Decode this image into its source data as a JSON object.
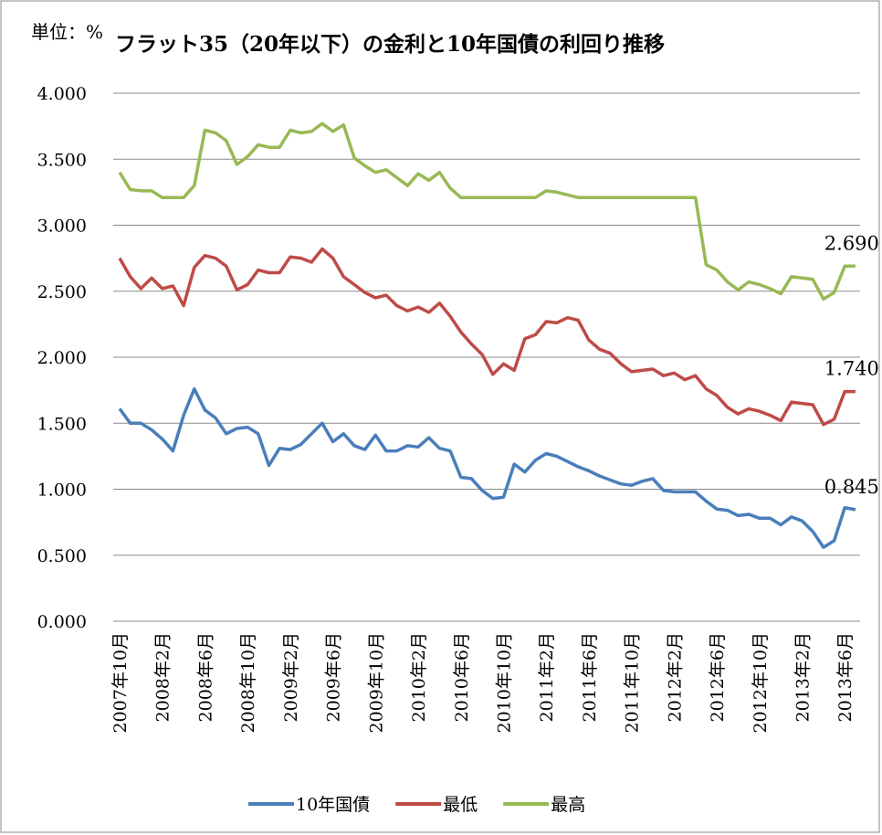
{
  "chart_data": {
    "type": "line",
    "unit_label": "単位：%",
    "title": "フラット35（20年以下）の金利と10年国債の利回り推移",
    "categories": [
      "2007年10月",
      null,
      null,
      null,
      "2008年2月",
      null,
      null,
      null,
      "2008年6月",
      null,
      null,
      null,
      "2008年10月",
      null,
      null,
      null,
      "2009年2月",
      null,
      null,
      null,
      "2009年6月",
      null,
      null,
      null,
      "2009年10月",
      null,
      null,
      null,
      "2010年2月",
      null,
      null,
      null,
      "2010年6月",
      null,
      null,
      null,
      "2010年10月",
      null,
      null,
      null,
      "2011年2月",
      null,
      null,
      null,
      "2011年6月",
      null,
      null,
      null,
      "2011年10月",
      null,
      null,
      null,
      "2012年2月",
      null,
      null,
      null,
      "2012年6月",
      null,
      null,
      null,
      "2012年10月",
      null,
      null,
      null,
      "2013年2月",
      null,
      null,
      null,
      "2013年6月",
      null
    ],
    "series": [
      {
        "name": "10年国債",
        "color": "#4a7ebb",
        "values": [
          1.61,
          1.5,
          1.5,
          1.45,
          1.38,
          1.29,
          1.56,
          1.76,
          1.6,
          1.54,
          1.42,
          1.46,
          1.47,
          1.42,
          1.18,
          1.31,
          1.3,
          1.34,
          1.42,
          1.5,
          1.36,
          1.42,
          1.33,
          1.3,
          1.41,
          1.29,
          1.29,
          1.33,
          1.32,
          1.39,
          1.31,
          1.29,
          1.09,
          1.08,
          0.99,
          0.93,
          0.94,
          1.19,
          1.13,
          1.22,
          1.27,
          1.25,
          1.21,
          1.17,
          1.14,
          1.1,
          1.07,
          1.04,
          1.03,
          1.06,
          1.08,
          0.99,
          0.98,
          0.98,
          0.98,
          0.91,
          0.85,
          0.84,
          0.8,
          0.81,
          0.78,
          0.78,
          0.73,
          0.79,
          0.76,
          0.68,
          0.56,
          0.61,
          0.86,
          0.845
        ],
        "value_labels": [
          null,
          null,
          null,
          null,
          null,
          null,
          null,
          null,
          null,
          null,
          null,
          null,
          null,
          null,
          null,
          null,
          null,
          null,
          null,
          null,
          null,
          null,
          null,
          null,
          null,
          null,
          null,
          null,
          null,
          null,
          null,
          null,
          null,
          null,
          null,
          null,
          null,
          null,
          null,
          null,
          null,
          null,
          null,
          null,
          null,
          null,
          null,
          null,
          null,
          null,
          null,
          null,
          null,
          null,
          null,
          null,
          null,
          null,
          null,
          null,
          null,
          null,
          null,
          null,
          null,
          null,
          null,
          null,
          null,
          "0.845"
        ]
      },
      {
        "name": "最低",
        "color": "#be4b48",
        "values": [
          2.75,
          2.61,
          2.52,
          2.6,
          2.52,
          2.54,
          2.39,
          2.68,
          2.77,
          2.75,
          2.69,
          2.51,
          2.55,
          2.66,
          2.64,
          2.64,
          2.76,
          2.75,
          2.72,
          2.82,
          2.75,
          2.61,
          2.55,
          2.49,
          2.45,
          2.47,
          2.39,
          2.35,
          2.38,
          2.34,
          2.41,
          2.31,
          2.19,
          2.1,
          2.02,
          1.87,
          1.95,
          1.9,
          2.14,
          2.17,
          2.27,
          2.26,
          2.3,
          2.28,
          2.13,
          2.06,
          2.03,
          1.95,
          1.89,
          1.9,
          1.91,
          1.86,
          1.88,
          1.83,
          1.86,
          1.76,
          1.71,
          1.62,
          1.57,
          1.61,
          1.59,
          1.56,
          1.52,
          1.66,
          1.65,
          1.64,
          1.49,
          1.53,
          1.74,
          1.74
        ],
        "value_labels": [
          null,
          null,
          null,
          null,
          null,
          null,
          null,
          null,
          null,
          null,
          null,
          null,
          null,
          null,
          null,
          null,
          null,
          null,
          null,
          null,
          null,
          null,
          null,
          null,
          null,
          null,
          null,
          null,
          null,
          null,
          null,
          null,
          null,
          null,
          null,
          null,
          null,
          null,
          null,
          null,
          null,
          null,
          null,
          null,
          null,
          null,
          null,
          null,
          null,
          null,
          null,
          null,
          null,
          null,
          null,
          null,
          null,
          null,
          null,
          null,
          null,
          null,
          null,
          null,
          null,
          null,
          null,
          null,
          null,
          "1.740"
        ]
      },
      {
        "name": "最高",
        "color": "#98b954",
        "values": [
          3.4,
          3.27,
          3.26,
          3.26,
          3.21,
          3.21,
          3.21,
          3.3,
          3.72,
          3.7,
          3.64,
          3.46,
          3.52,
          3.61,
          3.59,
          3.59,
          3.72,
          3.7,
          3.71,
          3.77,
          3.71,
          3.76,
          3.51,
          3.45,
          3.4,
          3.42,
          3.36,
          3.3,
          3.39,
          3.34,
          3.4,
          3.28,
          3.21,
          3.21,
          3.21,
          3.21,
          3.21,
          3.21,
          3.21,
          3.21,
          3.26,
          3.25,
          3.23,
          3.21,
          3.21,
          3.21,
          3.21,
          3.21,
          3.21,
          3.21,
          3.21,
          3.21,
          3.21,
          3.21,
          3.21,
          2.7,
          2.66,
          2.57,
          2.51,
          2.57,
          2.55,
          2.52,
          2.48,
          2.61,
          2.6,
          2.59,
          2.44,
          2.49,
          2.69,
          2.69
        ],
        "value_labels": [
          null,
          null,
          null,
          null,
          null,
          null,
          null,
          null,
          null,
          null,
          null,
          null,
          null,
          null,
          null,
          null,
          null,
          null,
          null,
          null,
          null,
          null,
          null,
          null,
          null,
          null,
          null,
          null,
          null,
          null,
          null,
          null,
          null,
          null,
          null,
          null,
          null,
          null,
          null,
          null,
          null,
          null,
          null,
          null,
          null,
          null,
          null,
          null,
          null,
          null,
          null,
          null,
          null,
          null,
          null,
          null,
          null,
          null,
          null,
          null,
          null,
          null,
          null,
          null,
          null,
          null,
          null,
          null,
          null,
          "2.690"
        ]
      }
    ],
    "ylim": [
      0,
      4
    ],
    "yticks": [
      {
        "value": 0,
        "label": "0.000"
      },
      {
        "value": 0.5,
        "label": "0.500"
      },
      {
        "value": 1,
        "label": "1.000"
      },
      {
        "value": 1.5,
        "label": "1.500"
      },
      {
        "value": 2,
        "label": "2.000"
      },
      {
        "value": 2.5,
        "label": "2.500"
      },
      {
        "value": 3,
        "label": "3.000"
      },
      {
        "value": 3.5,
        "label": "3.500"
      },
      {
        "value": 4,
        "label": "4.000"
      }
    ],
    "grid": true,
    "legend": "bottom"
  }
}
